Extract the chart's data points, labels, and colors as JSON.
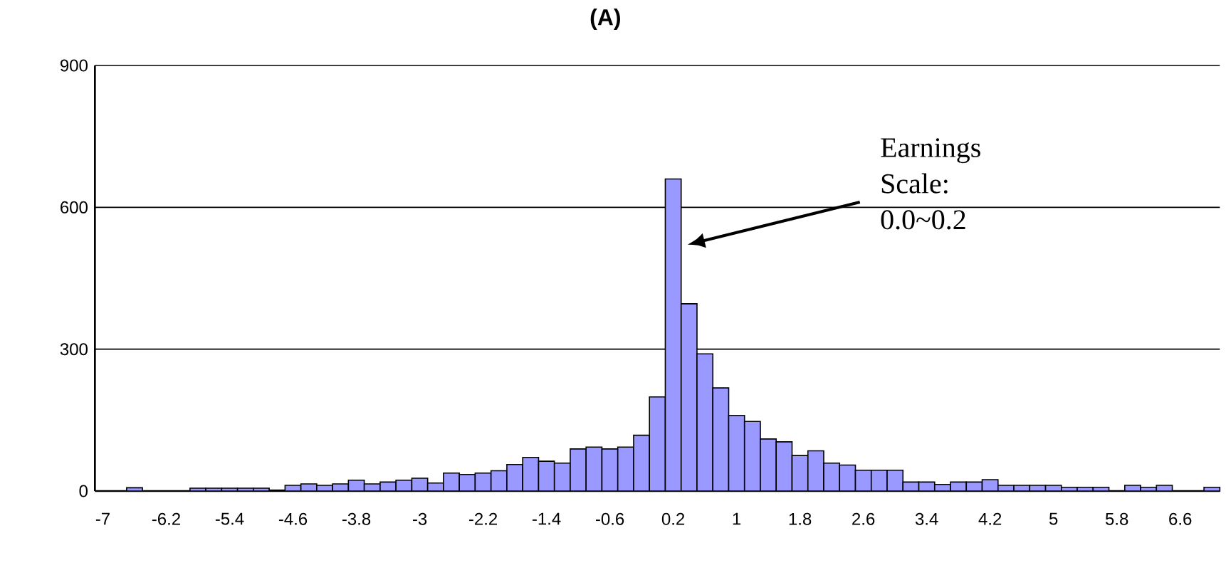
{
  "chart_data": {
    "type": "bar",
    "title": "(A)",
    "categories": [
      "-7",
      null,
      null,
      null,
      "-6.2",
      null,
      null,
      null,
      "-5.4",
      null,
      null,
      null,
      "-4.6",
      null,
      null,
      null,
      "-3.8",
      null,
      null,
      null,
      "-3",
      null,
      null,
      null,
      "-2.2",
      null,
      null,
      null,
      "-1.4",
      null,
      null,
      null,
      "-0.6",
      null,
      null,
      null,
      "0.2",
      null,
      null,
      null,
      "1",
      null,
      null,
      null,
      "1.8",
      null,
      null,
      null,
      "2.6",
      null,
      null,
      null,
      "3.4",
      null,
      null,
      null,
      "4.2",
      null,
      null,
      null,
      "5",
      null,
      null,
      null,
      "5.8",
      null,
      null,
      null,
      "6.6",
      null,
      null
    ],
    "values": [
      0,
      0,
      7,
      0,
      0,
      0,
      6,
      6,
      6,
      6,
      6,
      2,
      12,
      15,
      12,
      15,
      23,
      15,
      19,
      23,
      27,
      17,
      38,
      35,
      38,
      43,
      56,
      71,
      63,
      59,
      89,
      93,
      89,
      93,
      118,
      199,
      660,
      396,
      290,
      218,
      160,
      147,
      110,
      104,
      75,
      85,
      59,
      55,
      44,
      44,
      44,
      19,
      19,
      14,
      19,
      19,
      24,
      12,
      12,
      12,
      12,
      8,
      8,
      8,
      0,
      12,
      8,
      12,
      0,
      0,
      8
    ],
    "color": "#9999ff",
    "ylim": [
      0,
      900
    ],
    "yticks": [
      0,
      300,
      600,
      900
    ],
    "grid": "y",
    "annotations": [
      "Earnings Scale: 0.0~0.2"
    ]
  }
}
